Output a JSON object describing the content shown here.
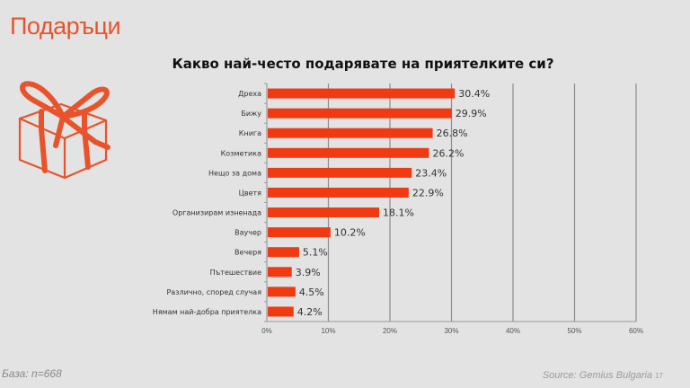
{
  "slide": {
    "title": "Подаръци",
    "footer_base": "База: n=668",
    "footer_source": "Source: Gemius Bulgaria",
    "page_number": "17"
  },
  "icons": {
    "gift": "gift-icon"
  },
  "colors": {
    "accent": "#e8532b",
    "bar": "#f23a12",
    "grid": "#8c8c8c",
    "background": "#e3e3e3"
  },
  "chart_data": {
    "type": "bar",
    "orientation": "horizontal",
    "title": "Какво най-често подарявате на приятелките си?",
    "categories": [
      "Дреха",
      "Бижу",
      "Книга",
      "Козметика",
      "Нещо за дома",
      "Цветя",
      "Организирам изненада",
      "Ваучер",
      "Вечеря",
      "Пътешествие",
      "Различно, според случая",
      "Нямам най-добра приятелка"
    ],
    "values": [
      30.4,
      29.9,
      26.8,
      26.2,
      23.4,
      22.9,
      18.1,
      10.2,
      5.1,
      3.9,
      4.5,
      4.2
    ],
    "value_labels": [
      "30.4%",
      "29.9%",
      "26.8%",
      "26.2%",
      "23.4%",
      "22.9%",
      "18.1%",
      "10.2%",
      "5.1%",
      "3.9%",
      "4.5%",
      "4.2%"
    ],
    "xlim": [
      0,
      60
    ],
    "xticks": [
      0,
      10,
      20,
      30,
      40,
      50,
      60
    ],
    "xtick_labels": [
      "0%",
      "10%",
      "20%",
      "30%",
      "40%",
      "50%",
      "60%"
    ],
    "xlabel": "",
    "ylabel": "",
    "grid": true,
    "legend": "none"
  }
}
